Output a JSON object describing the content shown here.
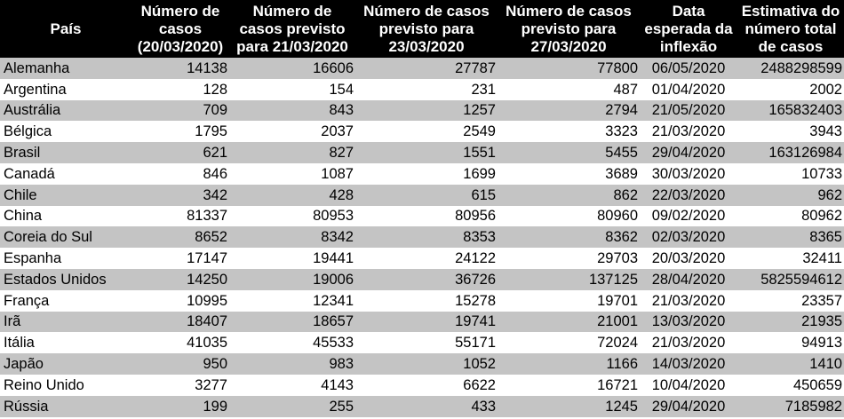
{
  "headers": [
    "País",
    "Número de casos (20/03/2020)",
    "Número de casos previsto para 21/03/2020",
    "Número de casos previsto para 23/03/2020",
    "Número de casos previsto para 27/03/2020",
    "Data esperada da inflexão",
    "Estimativa do número total de casos"
  ],
  "rows": [
    [
      "Alemanha",
      "14138",
      "16606",
      "27787",
      "77800",
      "06/05/2020",
      "2488298599"
    ],
    [
      "Argentina",
      "128",
      "154",
      "231",
      "487",
      "01/04/2020",
      "2002"
    ],
    [
      "Austrália",
      "709",
      "843",
      "1257",
      "2794",
      "21/05/2020",
      "165832403"
    ],
    [
      "Bélgica",
      "1795",
      "2037",
      "2549",
      "3323",
      "21/03/2020",
      "3943"
    ],
    [
      "Brasil",
      "621",
      "827",
      "1551",
      "5455",
      "29/04/2020",
      "163126984"
    ],
    [
      "Canadá",
      "846",
      "1087",
      "1699",
      "3689",
      "30/03/2020",
      "10733"
    ],
    [
      "Chile",
      "342",
      "428",
      "615",
      "862",
      "22/03/2020",
      "962"
    ],
    [
      "China",
      "81337",
      "80953",
      "80956",
      "80960",
      "09/02/2020",
      "80962"
    ],
    [
      "Coreia do Sul",
      "8652",
      "8342",
      "8353",
      "8362",
      "02/03/2020",
      "8365"
    ],
    [
      "Espanha",
      "17147",
      "19441",
      "24122",
      "29703",
      "20/03/2020",
      "32411"
    ],
    [
      "Estados Unidos",
      "14250",
      "19006",
      "36726",
      "137125",
      "28/04/2020",
      "5825594612"
    ],
    [
      "França",
      "10995",
      "12341",
      "15278",
      "19701",
      "21/03/2020",
      "23357"
    ],
    [
      "Irã",
      "18407",
      "18657",
      "19741",
      "21001",
      "13/03/2020",
      "21935"
    ],
    [
      "Itália",
      "41035",
      "45533",
      "55171",
      "72024",
      "21/03/2020",
      "94913"
    ],
    [
      "Japão",
      "950",
      "983",
      "1052",
      "1166",
      "14/03/2020",
      "1410"
    ],
    [
      "Reino Unido",
      "3277",
      "4143",
      "6622",
      "16721",
      "10/04/2020",
      "450659"
    ],
    [
      "Rússia",
      "199",
      "255",
      "433",
      "1245",
      "29/04/2020",
      "7185982"
    ]
  ]
}
